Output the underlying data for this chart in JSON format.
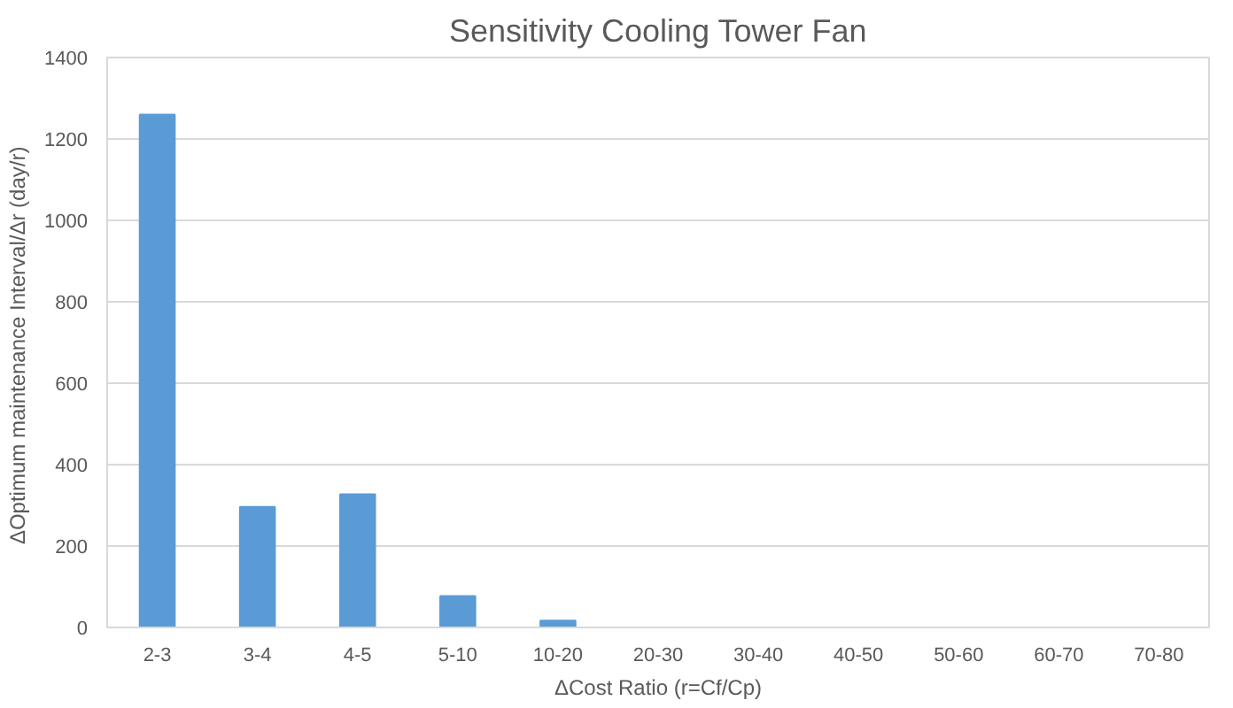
{
  "chart_data": {
    "type": "bar",
    "title": "Sensitivity Cooling Tower Fan",
    "xlabel": "ΔCost Ratio (r=Cf/Cp)",
    "ylabel": "ΔOptimum maintenance Interval/Δr  (day/r)",
    "categories": [
      "2-3",
      "3-4",
      "4-5",
      "5-10",
      "10-20",
      "20-30",
      "30-40",
      "40-50",
      "50-60",
      "60-70",
      "70-80"
    ],
    "values": [
      1260,
      296,
      327,
      77,
      17,
      0,
      0,
      0,
      0,
      0,
      0
    ],
    "color": "#5b9bd5",
    "ylim": [
      0,
      1400
    ],
    "yticks": [
      0,
      200,
      400,
      600,
      800,
      1000,
      1200,
      1400
    ],
    "grid": "y"
  }
}
